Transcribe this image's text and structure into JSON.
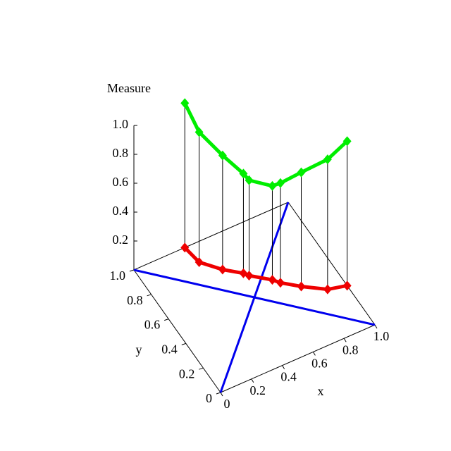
{
  "chart_data": {
    "type": "line3d",
    "zlabel": "Measure",
    "xlabel": "x",
    "ylabel": "y",
    "x": [
      0.33,
      0.35,
      0.44,
      0.53,
      0.55,
      0.65,
      0.68,
      0.77,
      0.89,
      1.0
    ],
    "y": [
      1.0,
      0.87,
      0.76,
      0.68,
      0.65,
      0.56,
      0.52,
      0.44,
      0.35,
      0.32
    ],
    "series": [
      {
        "color": "#00ee00",
        "values": [
          1.0,
          0.9,
          0.79,
          0.69,
          0.66,
          0.65,
          0.69,
          0.79,
          0.9,
          1.0
        ]
      }
    ],
    "projection_color": "#ee0000",
    "diagonals": [
      {
        "color": "#0000ee",
        "x": [
          0,
          1
        ],
        "y": [
          0,
          1
        ]
      },
      {
        "color": "#0000ee",
        "x": [
          0,
          1
        ],
        "y": [
          1,
          0
        ]
      }
    ],
    "xlim": [
      0,
      1
    ],
    "ylim": [
      0,
      1
    ],
    "zlim": [
      0,
      1
    ],
    "xticks": [
      0,
      0.2,
      0.4,
      0.6,
      0.8,
      {
        "value": 1,
        "label": "1.0"
      }
    ],
    "yticks": [
      0,
      0.2,
      0.4,
      0.6,
      0.8,
      {
        "value": 1,
        "label": "1.0"
      }
    ],
    "zticks": [
      0.2,
      0.4,
      0.6,
      0.8,
      {
        "value": 1,
        "label": "1.0"
      }
    ]
  }
}
